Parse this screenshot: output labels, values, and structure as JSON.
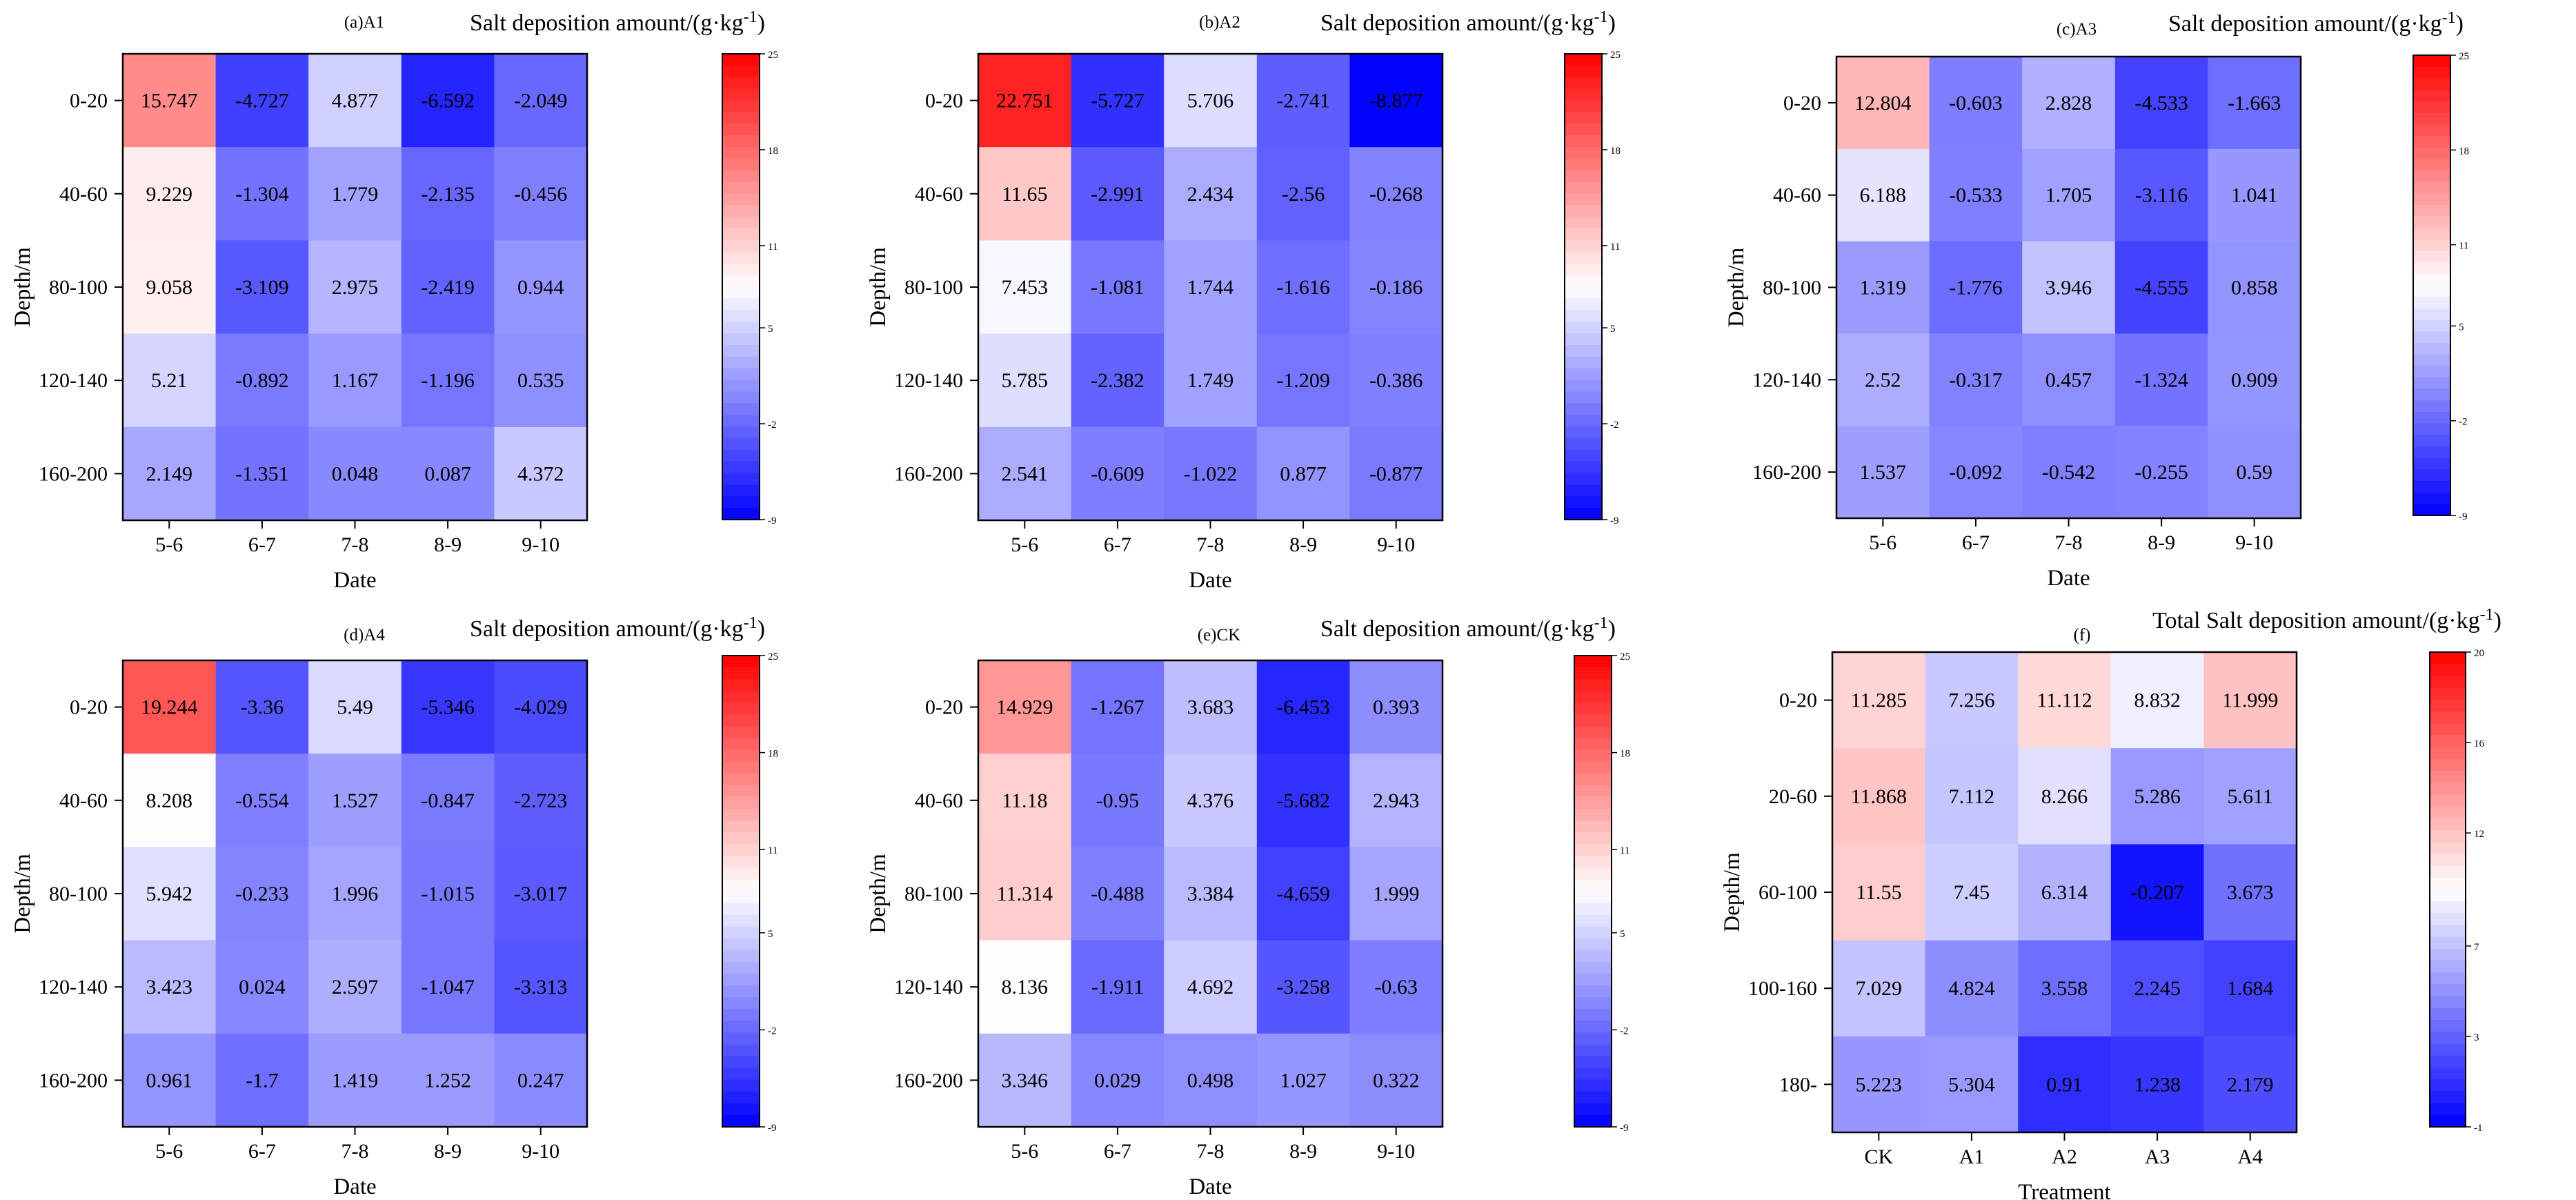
{
  "chart_data": [
    {
      "type": "heatmap",
      "title": "(a)A1",
      "colorbar_title": "Salt deposition amount/(g·kg",
      "colorbar_exp": "-1",
      "colorbar_close": ")",
      "xlabel": "Date",
      "ylabel": "Depth/m",
      "x_categories": [
        "5-6",
        "6-7",
        "7-8",
        "8-9",
        "9-10"
      ],
      "y_categories": [
        "0-20",
        "40-60",
        "80-100",
        "120-140",
        "160-200"
      ],
      "values": [
        [
          "15.747",
          "-4.727",
          "4.877",
          "-6.592",
          "-2.049"
        ],
        [
          "9.229",
          "-1.304",
          "1.779",
          "-2.135",
          "-0.456"
        ],
        [
          "9.058",
          "-3.109",
          "2.975",
          "-2.419",
          "0.944"
        ],
        [
          "5.21",
          "-0.892",
          "1.167",
          "-1.196",
          "0.535"
        ],
        [
          "2.149",
          "-1.351",
          "0.048",
          "0.087",
          "4.372"
        ]
      ],
      "colorbar_range": [
        -9,
        25
      ],
      "colorbar_ticks": [
        "25",
        "18",
        "11",
        "5",
        "-2",
        "-9"
      ]
    },
    {
      "type": "heatmap",
      "title": "(b)A2",
      "colorbar_title": "Salt deposition amount/(g·kg",
      "colorbar_exp": "-1",
      "colorbar_close": ")",
      "xlabel": "Date",
      "ylabel": "Depth/m",
      "x_categories": [
        "5-6",
        "6-7",
        "7-8",
        "8-9",
        "9-10"
      ],
      "y_categories": [
        "0-20",
        "40-60",
        "80-100",
        "120-140",
        "160-200"
      ],
      "values": [
        [
          "22.751",
          "-5.727",
          "5.706",
          "-2.741",
          "-8.877"
        ],
        [
          "11.65",
          "-2.991",
          "2.434",
          "-2.56",
          "-0.268"
        ],
        [
          "7.453",
          "-1.081",
          "1.744",
          "-1.616",
          "-0.186"
        ],
        [
          "5.785",
          "-2.382",
          "1.749",
          "-1.209",
          "-0.386"
        ],
        [
          "2.541",
          "-0.609",
          "-1.022",
          "0.877",
          "-0.877"
        ]
      ],
      "colorbar_range": [
        -9,
        25
      ],
      "colorbar_ticks": [
        "25",
        "18",
        "11",
        "5",
        "-2",
        "-9"
      ]
    },
    {
      "type": "heatmap",
      "title": "(c)A3",
      "colorbar_title": "Salt deposition amount/(g·kg",
      "colorbar_exp": "-1",
      "colorbar_close": ")",
      "xlabel": "Date",
      "ylabel": "Depth/m",
      "x_categories": [
        "5-6",
        "6-7",
        "7-8",
        "8-9",
        "9-10"
      ],
      "y_categories": [
        "0-20",
        "40-60",
        "80-100",
        "120-140",
        "160-200"
      ],
      "values": [
        [
          "12.804",
          "-0.603",
          "2.828",
          "-4.533",
          "-1.663"
        ],
        [
          "6.188",
          "-0.533",
          "1.705",
          "-3.116",
          "1.041"
        ],
        [
          "1.319",
          "-1.776",
          "3.946",
          "-4.555",
          "0.858"
        ],
        [
          "2.52",
          "-0.317",
          "0.457",
          "-1.324",
          "0.909"
        ],
        [
          "1.537",
          "-0.092",
          "-0.542",
          "-0.255",
          "0.59"
        ]
      ],
      "colorbar_range": [
        -9,
        25
      ],
      "colorbar_ticks": [
        "25",
        "18",
        "11",
        "5",
        "-2",
        "-9"
      ]
    },
    {
      "type": "heatmap",
      "title": "(d)A4",
      "colorbar_title": "Salt deposition amount/(g·kg",
      "colorbar_exp": "-1",
      "colorbar_close": ")",
      "xlabel": "Date",
      "ylabel": "Depth/m",
      "x_categories": [
        "5-6",
        "6-7",
        "7-8",
        "8-9",
        "9-10"
      ],
      "y_categories": [
        "0-20",
        "40-60",
        "80-100",
        "120-140",
        "160-200"
      ],
      "values": [
        [
          "19.244",
          "-3.36",
          "5.49",
          "-5.346",
          "-4.029"
        ],
        [
          "8.208",
          "-0.554",
          "1.527",
          "-0.847",
          "-2.723"
        ],
        [
          "5.942",
          "-0.233",
          "1.996",
          "-1.015",
          "-3.017"
        ],
        [
          "3.423",
          "0.024",
          "2.597",
          "-1.047",
          "-3.313"
        ],
        [
          "0.961",
          "-1.7",
          "1.419",
          "1.252",
          "0.247"
        ]
      ],
      "colorbar_range": [
        -9,
        25
      ],
      "colorbar_ticks": [
        "25",
        "18",
        "11",
        "5",
        "-2",
        "-9"
      ]
    },
    {
      "type": "heatmap",
      "title": "(e)CK",
      "colorbar_title": "Salt deposition amount/(g·kg",
      "colorbar_exp": "-1",
      "colorbar_close": ")",
      "xlabel": "Date",
      "ylabel": "Depth/m",
      "x_categories": [
        "5-6",
        "6-7",
        "7-8",
        "8-9",
        "9-10"
      ],
      "y_categories": [
        "0-20",
        "40-60",
        "80-100",
        "120-140",
        "160-200"
      ],
      "values": [
        [
          "14.929",
          "-1.267",
          "3.683",
          "-6.453",
          "0.393"
        ],
        [
          "11.18",
          "-0.95",
          "4.376",
          "-5.682",
          "2.943"
        ],
        [
          "11.314",
          "-0.488",
          "3.384",
          "-4.659",
          "1.999"
        ],
        [
          "8.136",
          "-1.911",
          "4.692",
          "-3.258",
          "-0.63"
        ],
        [
          "3.346",
          "0.029",
          "0.498",
          "1.027",
          "0.322"
        ]
      ],
      "colorbar_range": [
        -9,
        25
      ],
      "colorbar_ticks": [
        "25",
        "18",
        "11",
        "5",
        "-2",
        "-9"
      ]
    },
    {
      "type": "heatmap",
      "title": "(f)",
      "colorbar_title": "Total Salt deposition amount/(g·kg",
      "colorbar_exp": "-1",
      "colorbar_close": ")",
      "xlabel": "Treatment",
      "ylabel": "Depth/m",
      "x_categories": [
        "CK",
        "A1",
        "A2",
        "A3",
        "A4"
      ],
      "y_categories": [
        "0-20",
        "20-60",
        "60-100",
        "100-160",
        "180-"
      ],
      "values": [
        [
          "11.285",
          "7.256",
          "11.112",
          "8.832",
          "11.999"
        ],
        [
          "11.868",
          "7.112",
          "8.266",
          "5.286",
          "5.611"
        ],
        [
          "11.55",
          "7.45",
          "6.314",
          "-0.207",
          "3.673"
        ],
        [
          "7.029",
          "4.824",
          "3.558",
          "2.245",
          "1.684"
        ],
        [
          "5.223",
          "5.304",
          "0.91",
          "1.238",
          "2.179"
        ]
      ],
      "colorbar_range": [
        -1,
        20
      ],
      "colorbar_ticks": [
        "20",
        "16",
        "12",
        "7",
        "3",
        "-1"
      ]
    }
  ],
  "colors": {
    "low": "#0000ff",
    "mid": "#ffffff",
    "high": "#ff0000"
  }
}
